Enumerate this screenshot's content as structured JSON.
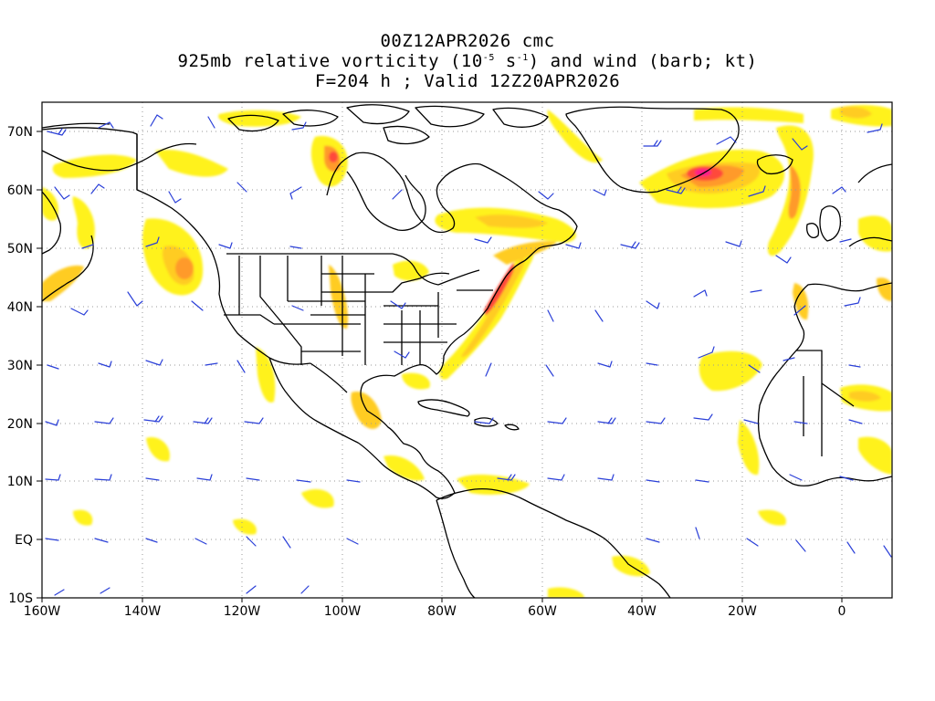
{
  "titles": {
    "line1": "00Z12APR2026 cmc",
    "line2_pre": "925mb relative vorticity (10",
    "line2_exp1": "-5",
    "line2_mid": " s",
    "line2_exp2": "-1",
    "line2_post": ") and wind (barb; kt)",
    "line3": "F=204 h ; Valid 12Z20APR2026"
  },
  "axes": {
    "lat_labels": [
      "70N",
      "60N",
      "50N",
      "40N",
      "30N",
      "20N",
      "10N",
      "EQ",
      "10S"
    ],
    "lon_labels": [
      "160W",
      "140W",
      "120W",
      "100W",
      "80W",
      "60W",
      "40W",
      "20W",
      "0"
    ],
    "lat_range": [
      -10,
      75
    ],
    "lon_range": [
      -160,
      10
    ]
  },
  "colors": {
    "frame": "#000000",
    "grid": "#9a9a9a",
    "coast": "#000000",
    "barb": "#2a3fd8",
    "shading": [
      "#fff21a",
      "#ffcc22",
      "#ff9a2a",
      "#ff4a3a",
      "#ff1a8a"
    ]
  },
  "grid": "dotted",
  "icons": {
    "wind": "wind-barb-icon"
  }
}
